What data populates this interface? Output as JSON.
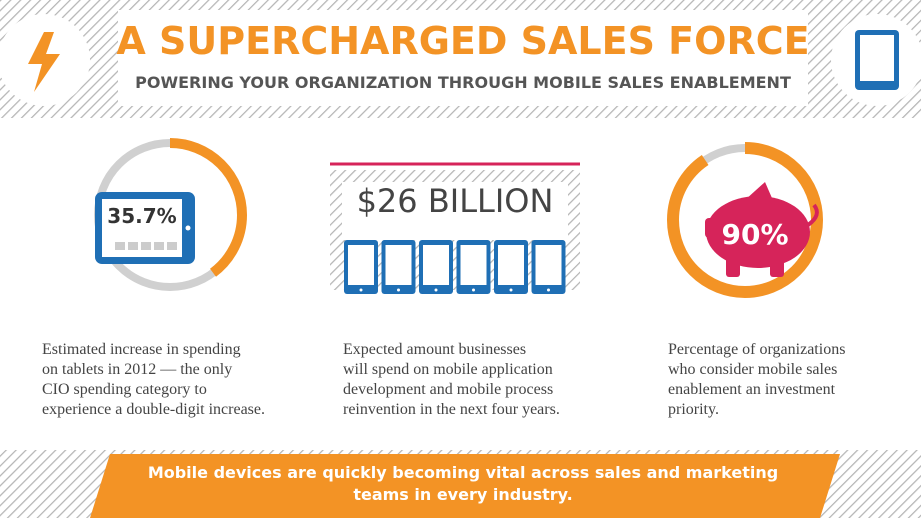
{
  "header": {
    "title": "A SUPERCHARGED SALES FORCE",
    "subtitle": "POWERING YOUR ORGANIZATION THROUGH MOBILE SALES ENABLEMENT"
  },
  "stats": [
    {
      "figure": "35.7%",
      "description": [
        "Estimated increase in spending",
        "on tablets in 2012 — the only",
        "CIO spending category to",
        "experience a double-digit increase."
      ]
    },
    {
      "figure": "$26 BILLION",
      "description": [
        "Expected amount businesses",
        "will spend on mobile application",
        "development and mobile process",
        "reinvention in the next four years."
      ]
    },
    {
      "figure": "90%",
      "description": [
        "Percentage of organizations",
        "who consider mobile sales",
        "enablement an investment",
        "priority."
      ]
    }
  ],
  "footer": {
    "lines": [
      "Mobile devices are quickly becoming vital across sales and marketing",
      "teams in every industry."
    ]
  }
}
